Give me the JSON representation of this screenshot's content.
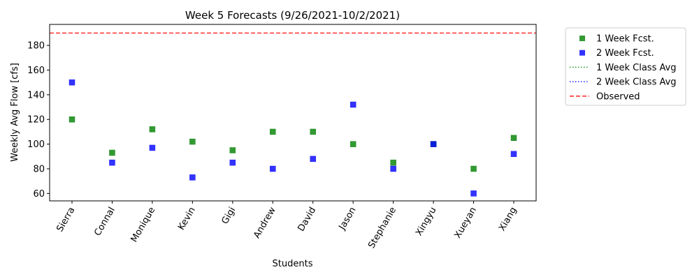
{
  "chart_data": {
    "type": "scatter",
    "title": "Week 5 Forecasts (9/26/2021-10/2/2021)",
    "xlabel": "Students",
    "ylabel": "Weekly Avg Flow [cfs]",
    "ylim": [
      54,
      197
    ],
    "yticks": [
      60,
      80,
      100,
      120,
      140,
      160,
      180
    ],
    "grid": false,
    "legend_position": "outside-top-right",
    "categories": [
      "Sierra",
      "Connal",
      "Monique",
      "Kevin",
      "Gigi",
      "Andrew",
      "David",
      "Jason",
      "Stephanie",
      "Xingyu",
      "Xueyan",
      "Xiang"
    ],
    "series": [
      {
        "name": "1 Week Fcst.",
        "kind": "marker",
        "color": "#008000",
        "values": [
          120,
          93,
          112,
          102,
          95,
          110,
          110,
          100,
          85,
          100,
          80,
          105
        ]
      },
      {
        "name": "2 Week Fcst.",
        "kind": "marker",
        "color": "#0000ff",
        "values": [
          150,
          85,
          97,
          73,
          85,
          80,
          88,
          132,
          80,
          100,
          60,
          92
        ]
      }
    ],
    "reference_lines": [
      {
        "name": "1 Week Class Avg",
        "style": "dotted",
        "color": "#008000",
        "value": null
      },
      {
        "name": "2 Week Class Avg",
        "style": "dotted",
        "color": "#0000ff",
        "value": null
      },
      {
        "name": "Observed",
        "style": "dashed",
        "color": "#ff0000",
        "value": 190
      }
    ]
  }
}
